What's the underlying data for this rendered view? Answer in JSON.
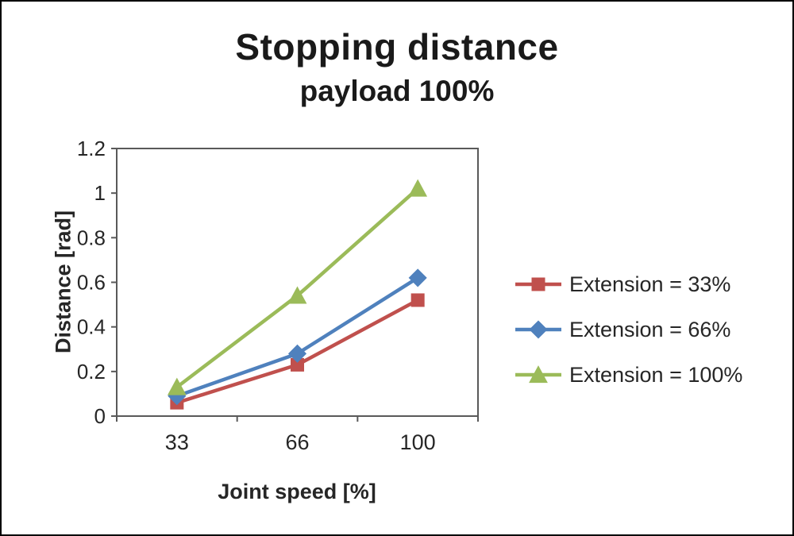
{
  "chart_data": {
    "type": "line",
    "title": "Stopping distance",
    "subtitle": "payload 100%",
    "xlabel": "Joint speed [%]",
    "ylabel": "Distance [rad]",
    "categories": [
      "33",
      "66",
      "100"
    ],
    "yticks": [
      "0",
      "0.2",
      "0.4",
      "0.6",
      "0.8",
      "1",
      "1.2"
    ],
    "ylim": [
      0,
      1.2
    ],
    "grid": false,
    "legend_position": "right",
    "series": [
      {
        "name": "Extension = 33%",
        "marker": "square",
        "color": "#C0504D",
        "values": [
          0.06,
          0.23,
          0.52
        ]
      },
      {
        "name": "Extension = 66%",
        "marker": "diamond",
        "color": "#4F81BD",
        "values": [
          0.09,
          0.28,
          0.62
        ]
      },
      {
        "name": "Extension = 100%",
        "marker": "triangle",
        "color": "#9BBB59",
        "values": [
          0.13,
          0.54,
          1.02
        ]
      }
    ],
    "axis_color": "#595959"
  }
}
